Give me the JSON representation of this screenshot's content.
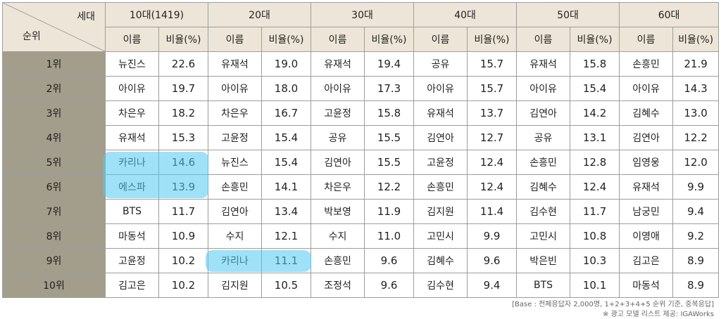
{
  "corner": {
    "top_label": "세대",
    "bottom_label": "순위"
  },
  "generations": [
    "10대(1419)",
    "20대",
    "30대",
    "40대",
    "50대",
    "60대"
  ],
  "subheaders": {
    "name": "이름",
    "ratio": "비율(%)"
  },
  "rows": [
    {
      "rank": "1위",
      "cells": [
        [
          "뉴진스",
          "22.6"
        ],
        [
          "유재석",
          "19.0"
        ],
        [
          "유재석",
          "19.4"
        ],
        [
          "공유",
          "15.7"
        ],
        [
          "유재석",
          "15.8"
        ],
        [
          "손흥민",
          "21.9"
        ]
      ]
    },
    {
      "rank": "2위",
      "cells": [
        [
          "아이유",
          "19.7"
        ],
        [
          "아이유",
          "18.0"
        ],
        [
          "아이유",
          "17.3"
        ],
        [
          "아이유",
          "15.7"
        ],
        [
          "아이유",
          "15.4"
        ],
        [
          "아이유",
          "14.3"
        ]
      ]
    },
    {
      "rank": "3위",
      "cells": [
        [
          "차은우",
          "18.2"
        ],
        [
          "차은우",
          "16.7"
        ],
        [
          "고윤정",
          "15.8"
        ],
        [
          "유재석",
          "13.7"
        ],
        [
          "김연아",
          "14.2"
        ],
        [
          "김혜수",
          "13.0"
        ]
      ]
    },
    {
      "rank": "4위",
      "cells": [
        [
          "유재석",
          "15.3"
        ],
        [
          "고윤정",
          "15.4"
        ],
        [
          "공유",
          "15.5"
        ],
        [
          "김연아",
          "12.7"
        ],
        [
          "공유",
          "13.1"
        ],
        [
          "김연아",
          "12.2"
        ]
      ]
    },
    {
      "rank": "5위",
      "cells": [
        [
          "카리나",
          "14.6"
        ],
        [
          "뉴진스",
          "15.4"
        ],
        [
          "김연아",
          "15.5"
        ],
        [
          "고윤정",
          "12.4"
        ],
        [
          "손흥민",
          "12.8"
        ],
        [
          "임영웅",
          "12.0"
        ]
      ]
    },
    {
      "rank": "6위",
      "cells": [
        [
          "에스파",
          "13.9"
        ],
        [
          "손흥민",
          "14.1"
        ],
        [
          "차은우",
          "12.2"
        ],
        [
          "손흥민",
          "12.4"
        ],
        [
          "김혜수",
          "12.4"
        ],
        [
          "유재석",
          "9.9"
        ]
      ]
    },
    {
      "rank": "7위",
      "cells": [
        [
          "BTS",
          "11.7"
        ],
        [
          "김연아",
          "13.4"
        ],
        [
          "박보영",
          "11.9"
        ],
        [
          "김지원",
          "11.4"
        ],
        [
          "김수현",
          "11.7"
        ],
        [
          "남궁민",
          "9.4"
        ]
      ]
    },
    {
      "rank": "8위",
      "cells": [
        [
          "마동석",
          "10.9"
        ],
        [
          "수지",
          "12.1"
        ],
        [
          "수지",
          "11.0"
        ],
        [
          "고민시",
          "9.9"
        ],
        [
          "고민시",
          "10.8"
        ],
        [
          "이영애",
          "9.2"
        ]
      ]
    },
    {
      "rank": "9위",
      "cells": [
        [
          "고윤정",
          "10.2"
        ],
        [
          "카리나",
          "11.1"
        ],
        [
          "손흥민",
          "9.6"
        ],
        [
          "김혜수",
          "9.6"
        ],
        [
          "박은빈",
          "10.3"
        ],
        [
          "김고은",
          "8.9"
        ]
      ]
    },
    {
      "rank": "10위",
      "cells": [
        [
          "김고은",
          "10.2"
        ],
        [
          "김지원",
          "10.5"
        ],
        [
          "조정석",
          "9.6"
        ],
        [
          "김수현",
          "9.4"
        ],
        [
          "BTS",
          "10.1"
        ],
        [
          "마동석",
          "8.9"
        ]
      ]
    }
  ],
  "highlight_color": "#50c8f0",
  "notes": {
    "base": "[Base : 전체응답자 2,000명, 1+2+3+4+5 순위 기준, 중복응답]",
    "source": "※ 광고 모델 리스트 제공: IGAWorks"
  }
}
